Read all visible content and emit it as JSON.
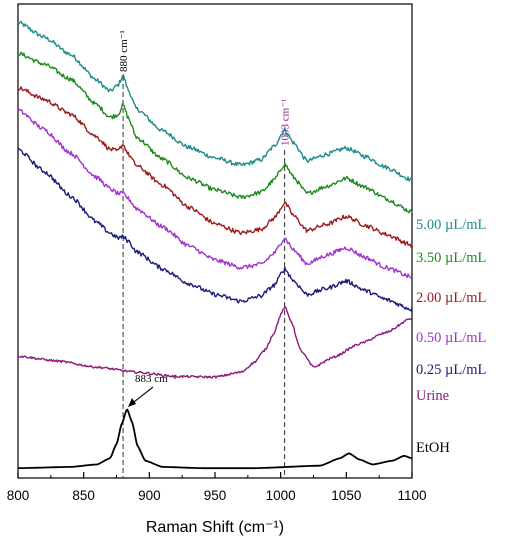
{
  "chart_data": {
    "type": "line",
    "xlabel": "Raman Shift (cm⁻¹)",
    "ylabel": "",
    "xlim": [
      800,
      1100
    ],
    "xticks": [
      "800",
      "850",
      "900",
      "950",
      "1000",
      "1050",
      "1100"
    ],
    "grid": false,
    "legend": "labels placed at right end of each trace",
    "reference_lines": [
      {
        "x": 880,
        "label": "880 cm⁻¹",
        "color": "#000000"
      },
      {
        "x": 1003,
        "label": "1003 cm⁻¹",
        "color": "#8b1a8b"
      }
    ],
    "annotation": {
      "label": "883 cm⁻¹",
      "x": 883
    },
    "series": [
      {
        "name": "5.00 µL/mL",
        "color": "#1e8c8c",
        "x": [
          800,
          820,
          840,
          860,
          870,
          876,
          880,
          884,
          890,
          910,
          930,
          950,
          970,
          985,
          995,
          1003,
          1010,
          1020,
          1035,
          1050,
          1065,
          1080,
          1100
        ],
        "y": [
          9.3,
          9.06,
          8.78,
          8.36,
          8.18,
          8.28,
          8.44,
          8.2,
          7.9,
          7.54,
          7.27,
          7.1,
          6.98,
          7.07,
          7.29,
          7.56,
          7.34,
          7.05,
          7.16,
          7.26,
          7.12,
          6.95,
          6.74
        ]
      },
      {
        "name": "3.50 µL/mL",
        "color": "#1e8a1e",
        "x": [
          800,
          820,
          840,
          860,
          870,
          876,
          880,
          884,
          890,
          910,
          930,
          950,
          970,
          985,
          995,
          1003,
          1010,
          1020,
          1035,
          1050,
          1065,
          1080,
          1100
        ],
        "y": [
          8.8,
          8.62,
          8.38,
          7.96,
          7.76,
          7.8,
          7.96,
          7.75,
          7.44,
          7.08,
          6.77,
          6.58,
          6.46,
          6.54,
          6.74,
          7.0,
          6.78,
          6.52,
          6.64,
          6.77,
          6.62,
          6.44,
          6.22
        ]
      },
      {
        "name": "2.00 µL/mL",
        "color": "#9b1c1c",
        "x": [
          800,
          820,
          840,
          860,
          870,
          876,
          880,
          884,
          890,
          910,
          930,
          950,
          970,
          985,
          995,
          1003,
          1010,
          1020,
          1035,
          1050,
          1065,
          1080,
          1100
        ],
        "y": [
          8.24,
          8.05,
          7.81,
          7.44,
          7.24,
          7.21,
          7.32,
          7.16,
          6.98,
          6.66,
          6.3,
          6.03,
          5.88,
          5.94,
          6.12,
          6.37,
          6.16,
          5.92,
          6.02,
          6.15,
          6.0,
          5.86,
          5.68
        ]
      },
      {
        "name": "0.50 µL/mL",
        "color": "#a133cf",
        "x": [
          800,
          820,
          840,
          860,
          870,
          876,
          880,
          884,
          890,
          910,
          930,
          950,
          970,
          985,
          995,
          1003,
          1010,
          1020,
          1035,
          1050,
          1065,
          1080,
          1100
        ],
        "y": [
          7.88,
          7.56,
          7.18,
          6.78,
          6.6,
          6.52,
          6.52,
          6.44,
          6.28,
          5.98,
          5.67,
          5.44,
          5.32,
          5.37,
          5.55,
          5.8,
          5.6,
          5.38,
          5.52,
          5.64,
          5.48,
          5.32,
          5.16
        ]
      },
      {
        "name": "0.25 µL/mL",
        "color": "#1c1c7a",
        "x": [
          800,
          820,
          840,
          860,
          870,
          876,
          880,
          884,
          890,
          910,
          930,
          950,
          970,
          985,
          995,
          1003,
          1010,
          1020,
          1035,
          1050,
          1065,
          1080,
          1100
        ],
        "y": [
          7.24,
          6.88,
          6.48,
          6.05,
          5.88,
          5.8,
          5.82,
          5.75,
          5.58,
          5.3,
          5.06,
          4.88,
          4.77,
          4.86,
          5.03,
          5.3,
          5.1,
          4.88,
          4.98,
          5.1,
          4.94,
          4.8,
          4.64
        ]
      },
      {
        "name": "Urine",
        "color": "#8b1a7a",
        "x": [
          800,
          830,
          860,
          890,
          920,
          950,
          970,
          980,
          988,
          995,
          1000,
          1003,
          1008,
          1015,
          1025,
          1040,
          1060,
          1080,
          1100
        ],
        "y": [
          3.88,
          3.8,
          3.7,
          3.62,
          3.55,
          3.54,
          3.62,
          3.78,
          3.98,
          4.26,
          4.55,
          4.68,
          4.45,
          3.98,
          3.7,
          3.86,
          4.08,
          4.26,
          4.5
        ]
      },
      {
        "name": "EtOH",
        "color": "#000000",
        "x": [
          800,
          840,
          860,
          870,
          875,
          879,
          883,
          887,
          891,
          897,
          910,
          940,
          980,
          1030,
          1045,
          1052,
          1060,
          1070,
          1085,
          1094,
          1100
        ],
        "y": [
          2.06,
          2.08,
          2.12,
          2.22,
          2.45,
          2.78,
          3.02,
          2.8,
          2.42,
          2.18,
          2.08,
          2.06,
          2.06,
          2.1,
          2.22,
          2.3,
          2.2,
          2.12,
          2.18,
          2.26,
          2.22
        ]
      }
    ]
  }
}
